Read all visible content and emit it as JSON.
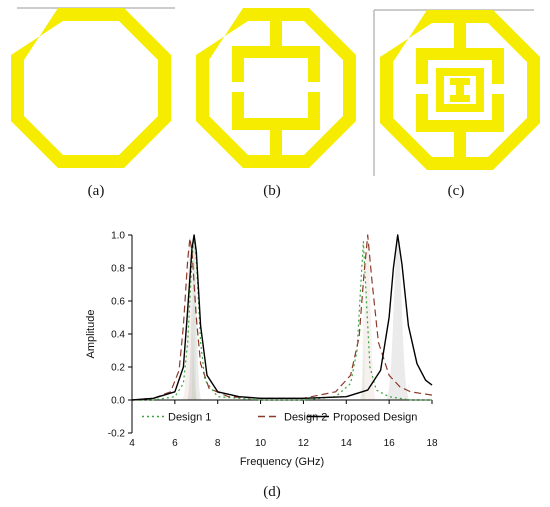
{
  "panels": [
    {
      "label": "(a)",
      "design": "ring"
    },
    {
      "label": "(b)",
      "design": "ring-square"
    },
    {
      "label": "(c)",
      "design": "ring-square-i"
    }
  ],
  "resonator_color": "#f5ec00",
  "chart_label": "(d)",
  "chart_data": {
    "type": "line",
    "xlabel": "Frequency (GHz)",
    "ylabel": "Amplitude",
    "xlim": [
      4,
      18
    ],
    "ylim": [
      -0.2,
      1.0
    ],
    "xticks": [
      "4",
      "6",
      "8",
      "10",
      "12",
      "14",
      "16",
      "18"
    ],
    "yticks": [
      "-0.2",
      "0.0",
      "0.2",
      "0.4",
      "0.6",
      "0.8",
      "1.0"
    ],
    "legend_position": "bottom",
    "series": [
      {
        "name": "Design 1",
        "color": "#3aa63a",
        "style": "dotted",
        "peaks": [
          [
            6.9,
            0.12
          ],
          [
            14.8,
            0.08
          ]
        ],
        "x": [
          4,
          5,
          6,
          6.4,
          6.6,
          6.8,
          6.9,
          7.0,
          7.2,
          7.4,
          8,
          10,
          12,
          13.5,
          14.2,
          14.5,
          14.7,
          14.8,
          14.9,
          15.1,
          15.4,
          16,
          17,
          18
        ],
        "y": [
          0.0,
          0.0,
          0.02,
          0.1,
          0.35,
          0.85,
          1.0,
          0.85,
          0.35,
          0.12,
          0.02,
          0.0,
          0.0,
          0.02,
          0.1,
          0.3,
          0.75,
          0.96,
          0.7,
          0.2,
          0.06,
          0.02,
          0.0,
          0.0
        ]
      },
      {
        "name": "Design 2",
        "color": "#8b3a2a",
        "style": "dashed",
        "peaks": [
          [
            6.7,
            0.3
          ],
          [
            15.0,
            0.35
          ]
        ],
        "x": [
          4,
          5,
          5.8,
          6.2,
          6.4,
          6.6,
          6.7,
          6.8,
          7.0,
          7.2,
          7.6,
          8.5,
          10,
          12,
          13.5,
          14.2,
          14.6,
          14.8,
          15.0,
          15.2,
          15.5,
          16.0,
          16.5,
          17,
          18
        ],
        "y": [
          0.0,
          0.01,
          0.05,
          0.18,
          0.45,
          0.85,
          0.98,
          0.9,
          0.5,
          0.22,
          0.07,
          0.02,
          0.01,
          0.01,
          0.05,
          0.15,
          0.38,
          0.72,
          1.0,
          0.72,
          0.35,
          0.15,
          0.08,
          0.05,
          0.03
        ]
      },
      {
        "name": "Proposed Design",
        "color": "#000000",
        "style": "solid",
        "peaks": [
          [
            6.9,
            0.3
          ],
          [
            16.4,
            0.5
          ]
        ],
        "x": [
          4,
          5,
          6,
          6.4,
          6.6,
          6.8,
          6.9,
          7.0,
          7.2,
          7.5,
          8,
          9,
          10,
          12,
          14,
          15,
          15.6,
          16.0,
          16.2,
          16.4,
          16.6,
          16.9,
          17.3,
          17.7,
          18
        ],
        "y": [
          0.0,
          0.01,
          0.05,
          0.2,
          0.55,
          0.92,
          1.0,
          0.9,
          0.45,
          0.15,
          0.05,
          0.02,
          0.01,
          0.01,
          0.02,
          0.06,
          0.18,
          0.5,
          0.8,
          1.0,
          0.82,
          0.45,
          0.22,
          0.12,
          0.09
        ]
      }
    ]
  }
}
